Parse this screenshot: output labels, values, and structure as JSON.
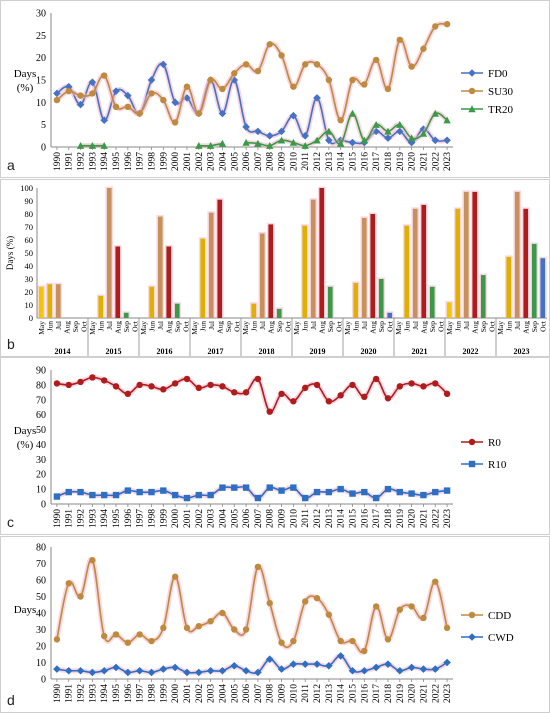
{
  "chart_data": [
    {
      "panel_label": "a",
      "type": "line",
      "ylabel": "Days\n(%)",
      "ylim": [
        0,
        30
      ],
      "yticks": [
        0,
        5,
        10,
        15,
        20,
        25,
        30
      ],
      "grid": false,
      "legend_position": "right",
      "x": [
        1990,
        1991,
        1992,
        1993,
        1994,
        1995,
        1996,
        1997,
        1998,
        1999,
        2000,
        2001,
        2002,
        2003,
        2004,
        2005,
        2006,
        2007,
        2008,
        2009,
        2010,
        2011,
        2012,
        2013,
        2014,
        2015,
        2016,
        2017,
        2018,
        2019,
        2020,
        2021,
        2022,
        2023
      ],
      "series": [
        {
          "name": "FD0",
          "color": "#4472C4",
          "marker": "diamond",
          "values": [
            12,
            13.5,
            9.5,
            14.5,
            6,
            12.5,
            11.5,
            7.5,
            15,
            18.5,
            10,
            11,
            7.5,
            15,
            7.5,
            15,
            4.5,
            3.5,
            2.5,
            3.5,
            7,
            2.5,
            11,
            1.5,
            1.5,
            1,
            1,
            3.5,
            2,
            3.5,
            1,
            4,
            1.5,
            1.5
          ]
        },
        {
          "name": "SU30",
          "color": "#C08A3E",
          "marker": "circle",
          "values": [
            10.5,
            12.5,
            11.5,
            12,
            16,
            9,
            9,
            7.5,
            12,
            10.5,
            5.5,
            13.5,
            7.5,
            15,
            13,
            16.5,
            18.5,
            17,
            23,
            20.5,
            13.5,
            18.5,
            18.5,
            15,
            6,
            15,
            14,
            19.5,
            13,
            24,
            18,
            22,
            27,
            27.5
          ]
        },
        {
          "name": "TR20",
          "color": "#3A9A47",
          "marker": "triangle",
          "values": [
            null,
            null,
            0.3,
            0.3,
            0.3,
            null,
            null,
            null,
            null,
            null,
            null,
            null,
            0.3,
            0.3,
            0.8,
            null,
            1,
            0.8,
            0.3,
            1.5,
            1,
            0.3,
            1.5,
            3.5,
            0.8,
            7.5,
            1.5,
            5,
            3.5,
            5,
            2,
            3,
            7.5,
            6
          ]
        }
      ]
    },
    {
      "panel_label": "b",
      "type": "bar",
      "ylabel": "Days (%)",
      "ylim": [
        0,
        100
      ],
      "yticks": [
        0,
        10,
        20,
        30,
        40,
        50,
        60,
        70,
        80,
        90,
        100
      ],
      "grid": false,
      "months": [
        "May",
        "Jun",
        "Jul",
        "Aug",
        "Sep",
        "Oct"
      ],
      "month_colors": [
        "#F2C500",
        "#E0B000",
        "#C8905A",
        "#B01C1C",
        "#3A9A47",
        "#4472C4"
      ],
      "groups": [
        {
          "year": "2014",
          "values": [
            24,
            26,
            26,
            null,
            null,
            null
          ]
        },
        {
          "year": "2015",
          "values": [
            null,
            17,
            100,
            55,
            4,
            null
          ]
        },
        {
          "year": "2016",
          "values": [
            null,
            24,
            78,
            55,
            11,
            null
          ]
        },
        {
          "year": "2017",
          "values": [
            null,
            61,
            81,
            91,
            null,
            null
          ]
        },
        {
          "year": "2018",
          "values": [
            null,
            11,
            65,
            72,
            7,
            null
          ]
        },
        {
          "year": "2019",
          "values": [
            null,
            71,
            91,
            100,
            24,
            null
          ]
        },
        {
          "year": "2020",
          "values": [
            null,
            27,
            77,
            80,
            30,
            4
          ]
        },
        {
          "year": "2021",
          "values": [
            null,
            71,
            84,
            87,
            24,
            null
          ]
        },
        {
          "year": "2022",
          "values": [
            12,
            84,
            97,
            97,
            33,
            null
          ]
        },
        {
          "year": "2023",
          "values": [
            null,
            47,
            97,
            84,
            57,
            46
          ]
        }
      ]
    },
    {
      "panel_label": "c",
      "type": "line",
      "ylabel": "Days\n(%)",
      "ylim": [
        0,
        90
      ],
      "yticks": [
        0,
        10,
        20,
        30,
        40,
        50,
        60,
        70,
        80,
        90
      ],
      "grid": false,
      "legend_position": "right",
      "x": [
        1990,
        1991,
        1992,
        1993,
        1994,
        1995,
        1996,
        1997,
        1998,
        1999,
        2000,
        2001,
        2002,
        2003,
        2004,
        2005,
        2006,
        2007,
        2008,
        2009,
        2010,
        2011,
        2012,
        2013,
        2014,
        2015,
        2016,
        2017,
        2018,
        2019,
        2020,
        2021,
        2022,
        2023
      ],
      "series": [
        {
          "name": "R0",
          "color": "#B01C1C",
          "marker": "circle",
          "values": [
            81,
            80,
            82,
            85,
            83,
            79,
            74,
            80,
            79,
            77,
            81,
            84,
            78,
            80,
            79,
            75,
            75,
            84,
            62,
            74,
            69,
            78,
            80,
            69,
            73,
            80,
            72,
            84,
            71,
            79,
            81,
            79,
            81,
            74
          ]
        },
        {
          "name": "R10",
          "color": "#2E6FC4",
          "marker": "square",
          "values": [
            5,
            8,
            8,
            6,
            6,
            6,
            9,
            8,
            8,
            9,
            6,
            4,
            6,
            6,
            11,
            11,
            11,
            4,
            11,
            9,
            11,
            4,
            8,
            8,
            10,
            7,
            8,
            4,
            10,
            8,
            7,
            6,
            8,
            9
          ]
        }
      ]
    },
    {
      "panel_label": "d",
      "type": "line",
      "ylabel": "Days",
      "ylim": [
        0,
        80
      ],
      "yticks": [
        0,
        10,
        20,
        30,
        40,
        50,
        60,
        70,
        80
      ],
      "grid": false,
      "legend_position": "right",
      "x": [
        1990,
        1991,
        1992,
        1993,
        1994,
        1995,
        1996,
        1997,
        1998,
        1999,
        2000,
        2001,
        2002,
        2003,
        2004,
        2005,
        2006,
        2007,
        2008,
        2009,
        2010,
        2011,
        2012,
        2013,
        2014,
        2015,
        2016,
        2017,
        2018,
        2019,
        2020,
        2021,
        2022,
        2023
      ],
      "series": [
        {
          "name": "CDD",
          "color": "#C08A3E",
          "marker": "circle",
          "values": [
            24,
            58,
            50,
            72,
            26,
            27,
            22,
            27,
            23,
            31,
            62,
            31,
            32,
            35,
            40,
            30,
            30,
            68,
            46,
            22,
            23,
            47,
            49,
            39,
            23,
            23,
            17,
            44,
            24,
            42,
            44,
            37,
            59,
            31
          ]
        },
        {
          "name": "CWD",
          "color": "#2E6FC4",
          "marker": "diamond",
          "values": [
            6,
            5,
            5,
            4,
            5,
            7,
            4,
            5,
            4,
            6,
            7,
            4,
            4,
            5,
            5,
            8,
            5,
            4,
            12,
            6,
            9,
            9,
            9,
            8,
            14,
            5,
            5,
            7,
            9,
            5,
            7,
            6,
            6,
            10
          ]
        }
      ]
    }
  ]
}
